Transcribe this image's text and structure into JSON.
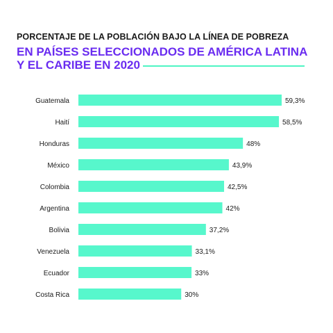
{
  "title_line1": "PORCENTAJE DE LA POBLACIÓN BAJO LA LÍNEA DE POBREZA",
  "title_line2": "EN PAÍSES SELECCIONADOS DE AMÉRICA LATINA",
  "title_line3": "Y EL CARIBE EN 2020",
  "colors": {
    "bar": "#57f7cc",
    "accent_line": "#4ef5c3",
    "title_purple": "#6a2cf0",
    "text": "#1a1a1a"
  },
  "chart_data": {
    "type": "bar",
    "orientation": "horizontal",
    "title": "PORCENTAJE DE LA POBLACIÓN BAJO LA LÍNEA DE POBREZA EN PAÍSES SELECCIONADOS DE AMÉRICA LATINA Y EL CARIBE EN 2020",
    "categories": [
      "Guatemala",
      "Haití",
      "Honduras",
      "México",
      "Colombia",
      "Argentina",
      "Bolivia",
      "Venezuela",
      "Ecuador",
      "Costa Rica"
    ],
    "values": [
      59.3,
      58.5,
      48,
      43.9,
      42.5,
      42,
      37.2,
      33.1,
      33,
      30
    ],
    "value_labels": [
      "59,3%",
      "58,5%",
      "48%",
      "43,9%",
      "42,5%",
      "42%",
      "37,2%",
      "33,1%",
      "33%",
      "30%"
    ],
    "xlabel": "",
    "ylabel": "",
    "xlim": [
      0,
      59.3
    ],
    "grid": false,
    "legend": "none"
  }
}
